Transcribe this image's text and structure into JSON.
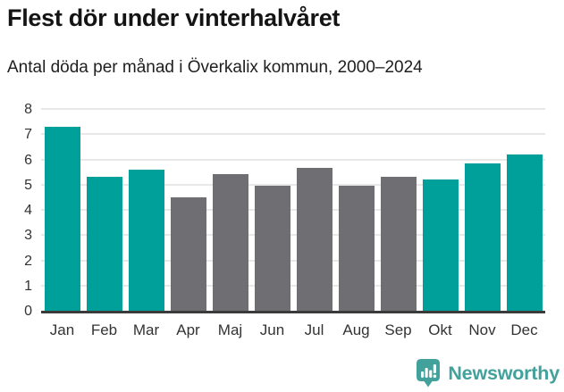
{
  "header": {
    "title": "Flest dör under vinterhalvåret",
    "subtitle": "Antal döda per månad i Överkalix kommun, 2000–2024"
  },
  "chart_data": {
    "type": "bar",
    "title": "Flest dör under vinterhalvåret",
    "subtitle": "Antal döda per månad i Överkalix kommun, 2000–2024",
    "categories": [
      "Jan",
      "Feb",
      "Mar",
      "Apr",
      "Maj",
      "Jun",
      "Jul",
      "Aug",
      "Sep",
      "Okt",
      "Nov",
      "Dec"
    ],
    "values": [
      7.3,
      5.3,
      5.6,
      4.5,
      5.4,
      4.95,
      5.65,
      4.95,
      5.3,
      5.2,
      5.85,
      6.2
    ],
    "bar_colors": [
      "#00a09a",
      "#00a09a",
      "#00a09a",
      "#6e6e73",
      "#6e6e73",
      "#6e6e73",
      "#6e6e73",
      "#6e6e73",
      "#6e6e73",
      "#00a09a",
      "#00a09a",
      "#00a09a"
    ],
    "xlabel": "",
    "ylabel": "",
    "ylim": [
      0,
      8
    ],
    "yticks": [
      0,
      1,
      2,
      3,
      4,
      5,
      6,
      7,
      8
    ],
    "grid": true,
    "legend": false,
    "highlight_color": "#00a09a",
    "muted_color": "#6e6e73",
    "gridline_color": "#e8e8e8",
    "axis_line_color": "#3b3b3b",
    "tick_label_color": "#333333"
  },
  "footer": {
    "logo_text": "Newsworthy",
    "logo_color": "#43a19b",
    "logo_icon": "speech-bubble-bar-chart-icon"
  }
}
